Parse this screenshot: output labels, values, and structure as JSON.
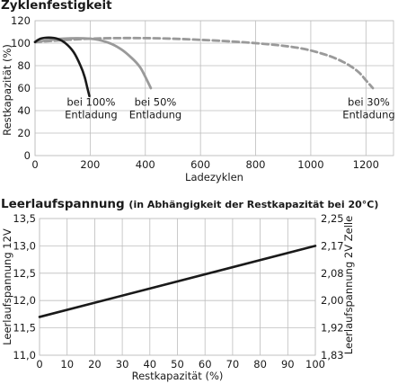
{
  "chart_data": [
    {
      "type": "line",
      "title": "Zyklenfestigkeit",
      "xlabel": "Ladezyklen",
      "ylabel": "Restkapazität (%)",
      "xlim": [
        0,
        1300
      ],
      "ylim": [
        0,
        120
      ],
      "xticks": [
        0,
        200,
        400,
        600,
        800,
        1000,
        1200
      ],
      "yticks": [
        0,
        20,
        40,
        60,
        80,
        100,
        120
      ],
      "grid": true,
      "series": [
        {
          "name": "bei 100% Entladung",
          "label_lines": [
            "bei 100%",
            "Entladung"
          ],
          "color": "#1a1a1a",
          "dash": "solid",
          "x": [
            0,
            20,
            50,
            80,
            110,
            140,
            165,
            180,
            190,
            197
          ],
          "y": [
            101,
            104,
            105,
            104,
            100,
            92,
            80,
            70,
            60,
            53
          ]
        },
        {
          "name": "bei 50% Entladung",
          "label_lines": [
            "bei 50%",
            "Entladung"
          ],
          "color": "#9a9a9a",
          "dash": "solid",
          "x": [
            0,
            100,
            200,
            260,
            310,
            350,
            380,
            400,
            420
          ],
          "y": [
            101,
            104,
            104,
            101,
            95,
            87,
            79,
            70,
            60
          ]
        },
        {
          "name": "bei 30% Entladung",
          "label_lines": [
            "bei 30%",
            "Entladung"
          ],
          "color": "#9a9a9a",
          "dash": "dashed",
          "x": [
            0,
            200,
            400,
            600,
            800,
            950,
            1050,
            1120,
            1170,
            1200,
            1225
          ],
          "y": [
            101,
            104,
            104.5,
            103,
            100,
            96,
            90,
            83,
            75,
            67,
            60
          ]
        }
      ]
    },
    {
      "type": "line",
      "title": "Leerlaufspannung",
      "subtitle": "(in Abhängigkeit der Restkapazität bei 20°C)",
      "xlabel": "Restkapazität (%)",
      "ylabel": "Leerlaufspannung 12V",
      "y2label": "Leerlaufspannung 2V Zelle",
      "xlim": [
        0,
        100
      ],
      "ylim": [
        11.0,
        13.5
      ],
      "xticks": [
        0,
        10,
        20,
        30,
        40,
        50,
        60,
        70,
        80,
        90,
        100
      ],
      "yticks": [
        "11,0",
        "11,5",
        "12,0",
        "12,5",
        "13,0",
        "13,5"
      ],
      "y2ticks": [
        "1,83",
        "1,92",
        "2,00",
        "2,08",
        "2,17",
        "2,25"
      ],
      "grid": true,
      "series": [
        {
          "color": "#1a1a1a",
          "x": [
            0,
            100
          ],
          "y": [
            11.7,
            13.0
          ]
        }
      ]
    }
  ]
}
